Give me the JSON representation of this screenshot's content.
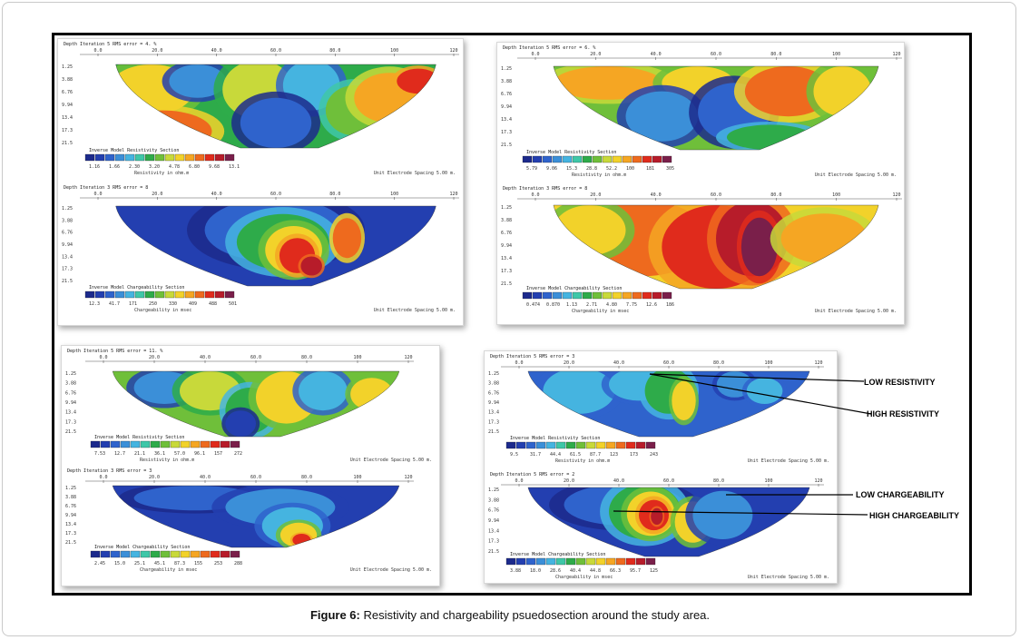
{
  "caption": {
    "label": "Figure 6:",
    "text": " Resistivity and chargeability psuedosection around the study area."
  },
  "annotations": {
    "low_resistivity": "LOW RESISTIVITY",
    "high_resistivity": "HIGH RESISTIVITY",
    "low_chargeability": "LOW CHARGEABILITY",
    "high_chargeability": "HIGH CHARGEABILITY"
  },
  "palette": [
    "#1c2a8c",
    "#233fb0",
    "#2f63cc",
    "#3b8fd8",
    "#45b4e0",
    "#3fc7a8",
    "#2eab4a",
    "#6fbf3a",
    "#c8d93a",
    "#f2d22a",
    "#f5a623",
    "#ee6a1e",
    "#e02b1c",
    "#b71c2a",
    "#7a1f4a"
  ],
  "panels": [
    {
      "id": "p1-res",
      "header": "Depth  Iteration 5 RMS error = 4.  %",
      "xticks": [
        "0.0",
        "20.0",
        "40.0",
        "60.0",
        "80.0",
        "100",
        "120"
      ],
      "depths": [
        "1.25",
        "3.88",
        "6.76",
        "9.94",
        "13.4",
        "17.3",
        "21.5"
      ],
      "section_title": "Inverse Model Resistivity Section",
      "scale_values": [
        "1.16",
        "1.66",
        "2.30",
        "3.20",
        "4.78",
        "6.80",
        "9.68",
        "13.1"
      ],
      "scale_label": "Resistivity in ohm.m",
      "spacing": "Unit Electrode Spacing 5.00 m."
    },
    {
      "id": "p1-chg",
      "header": "Depth  Iteration 3 RMS error = 8",
      "xticks": [
        "0.0",
        "20.0",
        "40.0",
        "60.0",
        "80.0",
        "100",
        "120"
      ],
      "depths": [
        "1.25",
        "3.88",
        "6.76",
        "9.94",
        "13.4",
        "17.3",
        "21.5"
      ],
      "section_title": "Inverse Model Chargeability Section",
      "scale_values": [
        "12.3",
        "41.7",
        "171",
        "250",
        "330",
        "409",
        "488",
        "501"
      ],
      "scale_label": "Chargeability in msec",
      "spacing": "Unit Electrode Spacing 5.00 m."
    },
    {
      "id": "p2-res",
      "header": "Depth  Iteration 5 RMS error = 6.  %",
      "xticks": [
        "0.0",
        "20.0",
        "40.0",
        "60.0",
        "80.0",
        "100",
        "120"
      ],
      "depths": [
        "1.25",
        "3.88",
        "6.76",
        "9.94",
        "13.4",
        "17.3",
        "21.5"
      ],
      "section_title": "Inverse Model Resistivity Section",
      "scale_values": [
        "5.79",
        "9.06",
        "15.3",
        "28.8",
        "52.2",
        "100",
        "181",
        "305"
      ],
      "scale_label": "Resistivity in ohm.m",
      "spacing": "Unit Electrode Spacing 5.00 m."
    },
    {
      "id": "p2-chg",
      "header": "Depth  Iteration 3 RMS error = 8",
      "xticks": [
        "0.0",
        "20.0",
        "40.0",
        "60.0",
        "80.0",
        "100",
        "120"
      ],
      "depths": [
        "1.25",
        "3.88",
        "6.76",
        "9.94",
        "13.4",
        "17.3",
        "21.5"
      ],
      "section_title": "Inverse Model Chargeability Section",
      "scale_values": [
        "0.474",
        "0.870",
        "1.13",
        "2.71",
        "4.80",
        "7.75",
        "12.6",
        "186"
      ],
      "scale_label": "Chargeability in msec",
      "spacing": "Unit Electrode Spacing 5.00 m."
    },
    {
      "id": "p3-res",
      "header": "Depth  Iteration 5 RMS error = 11.  %",
      "xticks": [
        "0.0",
        "20.0",
        "40.0",
        "60.0",
        "80.0",
        "100",
        "120"
      ],
      "depths": [
        "1.25",
        "3.88",
        "6.76",
        "9.94",
        "13.4",
        "17.3",
        "21.5"
      ],
      "section_title": "Inverse Model Resistivity Section",
      "scale_values": [
        "7.53",
        "12.7",
        "21.1",
        "36.1",
        "57.0",
        "96.1",
        "157",
        "272"
      ],
      "scale_label": "Resistivity in ohm.m",
      "spacing": "Unit Electrode Spacing 5.00 m."
    },
    {
      "id": "p3-chg",
      "header": "Depth  Iteration 3 RMS error = 3",
      "xticks": [
        "0.0",
        "20.0",
        "40.0",
        "60.0",
        "80.0",
        "100",
        "120"
      ],
      "depths": [
        "1.25",
        "3.88",
        "6.76",
        "9.94",
        "13.4",
        "17.3",
        "21.5"
      ],
      "section_title": "Inverse Model Chargeability Section",
      "scale_values": [
        "2.45",
        "15.0",
        "25.1",
        "45.1",
        "87.3",
        "155",
        "253",
        "288"
      ],
      "scale_label": "Chargeability in msec",
      "spacing": "Unit Electrode Spacing 5.00 m."
    },
    {
      "id": "p4-res",
      "header": "Depth  Iteration 5 RMS error = 3",
      "xticks": [
        "0.0",
        "20.0",
        "40.0",
        "60.0",
        "80.0",
        "100",
        "120"
      ],
      "depths": [
        "1.25",
        "3.88",
        "6.76",
        "9.94",
        "13.4",
        "17.3",
        "21.5"
      ],
      "section_title": "Inverse Model Resistivity Section",
      "scale_values": [
        "9.5",
        "31.7",
        "44.4",
        "61.5",
        "87.7",
        "123",
        "173",
        "243"
      ],
      "scale_label": "Resistivity in ohm.m",
      "spacing": "Unit Electrode Spacing 5.00 m."
    },
    {
      "id": "p4-chg",
      "header": "Depth  Iteration 5 RMS error = 2",
      "xticks": [
        "0.0",
        "20.0",
        "40.0",
        "60.0",
        "80.0",
        "100",
        "120"
      ],
      "depths": [
        "1.25",
        "3.88",
        "6.76",
        "9.94",
        "13.4",
        "17.3",
        "21.5"
      ],
      "section_title": "Inverse Model Chargeability Section",
      "scale_values": [
        "3.88",
        "18.0",
        "28.6",
        "40.4",
        "44.8",
        "66.3",
        "95.7",
        "125"
      ],
      "scale_label": "Chargeability in msec",
      "spacing": "Unit Electrode Spacing 5.00 m."
    }
  ]
}
